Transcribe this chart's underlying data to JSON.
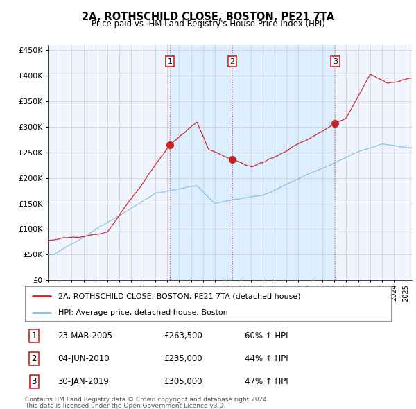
{
  "title": "2A, ROTHSCHILD CLOSE, BOSTON, PE21 7TA",
  "subtitle": "Price paid vs. HM Land Registry's House Price Index (HPI)",
  "legend_line1": "2A, ROTHSCHILD CLOSE, BOSTON, PE21 7TA (detached house)",
  "legend_line2": "HPI: Average price, detached house, Boston",
  "transactions": [
    {
      "num": 1,
      "date": "23-MAR-2005",
      "price": 263500,
      "pct": "60%",
      "dir": "↑",
      "label": "HPI",
      "year": 2005.22
    },
    {
      "num": 2,
      "date": "04-JUN-2010",
      "price": 235000,
      "pct": "44%",
      "dir": "↑",
      "label": "HPI",
      "year": 2010.45
    },
    {
      "num": 3,
      "date": "30-JAN-2019",
      "price": 305000,
      "pct": "47%",
      "dir": "↑",
      "label": "HPI",
      "year": 2019.08
    }
  ],
  "footnote1": "Contains HM Land Registry data © Crown copyright and database right 2024.",
  "footnote2": "This data is licensed under the Open Government Licence v3.0.",
  "hpi_color": "#7fbfdf",
  "price_color": "#cc2222",
  "vline_color": "#dd4444",
  "shade_color": "#ddeeff",
  "background_color": "#f0f4ff",
  "plot_bg": "#ffffff",
  "grid_color": "#cccccc",
  "ylim": [
    0,
    460000
  ],
  "yticks": [
    0,
    50000,
    100000,
    150000,
    200000,
    250000,
    300000,
    350000,
    400000,
    450000
  ],
  "xstart": 1995,
  "xend": 2025.5
}
